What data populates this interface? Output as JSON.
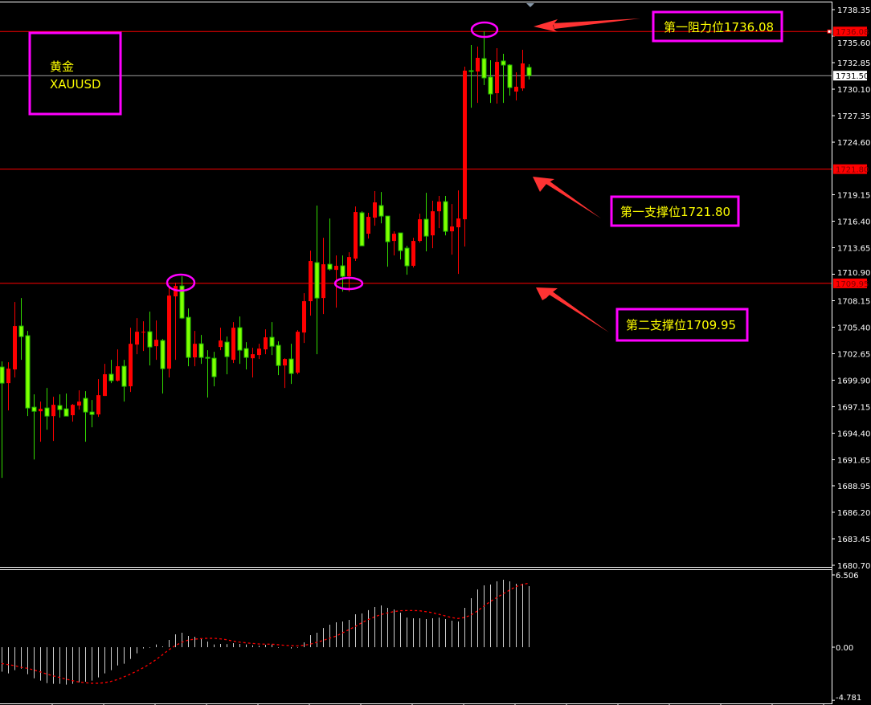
{
  "colors": {
    "background": "#000000",
    "up_candle": "#ff0000",
    "down_candle": "#7fff00",
    "level_line": "#ff0000",
    "current_price_line": "#a0a0a0",
    "annotation_box": "#ff00ff",
    "annotation_text": "#ffff00",
    "arrow": "#ff3333",
    "macd_histogram": "#d0d0d0",
    "macd_signal": "#ff0000"
  },
  "symbol_box": {
    "name_cn": "黄金",
    "symbol": "XAUUSD"
  },
  "annotations": [
    {
      "text": "第一阻力位1736.08",
      "level": 1736.08
    },
    {
      "text": "第一支撑位1721.80",
      "level": 1721.8
    },
    {
      "text": "第二支撑位1709.95",
      "level": 1709.95
    }
  ],
  "chart_data": [
    {
      "type": "candlestick",
      "title": "",
      "ylim": [
        1680.7,
        1738.35
      ],
      "y_ticks": [
        "1738.35",
        "1735.60",
        "1732.85",
        "1730.10",
        "1727.35",
        "1724.60",
        "1719.15",
        "1716.40",
        "1713.65",
        "1710.90",
        "1708.15",
        "1705.40",
        "1702.65",
        "1699.90",
        "1697.15",
        "1694.40",
        "1691.65",
        "1688.95",
        "1686.20",
        "1683.45",
        "1680.70"
      ],
      "grid": false,
      "current_price": "1731.50",
      "levels": [
        {
          "value": "1736.08",
          "label": "1736.08"
        },
        {
          "value": "1721.80",
          "label": "1721.80"
        },
        {
          "value": "1709.95",
          "label": "1709.95"
        }
      ],
      "ohlc_fields": [
        "open",
        "high",
        "low",
        "close"
      ],
      "candles": [
        [
          1701.27,
          1701.85,
          1689.77,
          1699.6
        ],
        [
          1699.6,
          1701.77,
          1696.77,
          1701.1
        ],
        [
          1701.02,
          1708.02,
          1700.18,
          1705.52
        ],
        [
          1705.52,
          1708.43,
          1702.02,
          1704.43
        ],
        [
          1704.52,
          1705.02,
          1696.18,
          1697.02
        ],
        [
          1697.1,
          1698.43,
          1691.68,
          1696.68
        ],
        [
          1696.68,
          1697.68,
          1693.52,
          1696.93
        ],
        [
          1697.02,
          1699.1,
          1694.77,
          1696.18
        ],
        [
          1696.18,
          1698.18,
          1693.6,
          1697.35
        ],
        [
          1697.27,
          1698.43,
          1696.02,
          1696.85
        ],
        [
          1696.93,
          1698.52,
          1696.18,
          1696.18
        ],
        [
          1696.27,
          1697.43,
          1695.6,
          1697.35
        ],
        [
          1697.27,
          1698.85,
          1696.85,
          1697.68
        ],
        [
          1698.02,
          1698.77,
          1693.52,
          1696.6
        ],
        [
          1696.6,
          1697.85,
          1695.02,
          1696.35
        ],
        [
          1696.35,
          1700.02,
          1696.1,
          1698.35
        ],
        [
          1698.27,
          1701.6,
          1698.27,
          1700.52
        ],
        [
          1700.52,
          1702.02,
          1699.6,
          1699.85
        ],
        [
          1699.85,
          1703.1,
          1699.77,
          1701.35
        ],
        [
          1701.35,
          1702.02,
          1697.68,
          1699.27
        ],
        [
          1699.27,
          1705.35,
          1698.68,
          1703.68
        ],
        [
          1703.6,
          1706.35,
          1702.6,
          1704.93
        ],
        [
          1704.85,
          1706.02,
          1702.93,
          1704.93
        ],
        [
          1704.93,
          1707.02,
          1701.43,
          1703.35
        ],
        [
          1703.43,
          1706.1,
          1702.02,
          1704.1
        ],
        [
          1704.02,
          1704.18,
          1698.52,
          1701.1
        ],
        [
          1701.1,
          1709.6,
          1700.18,
          1708.68
        ],
        [
          1708.6,
          1710.02,
          1702.02,
          1709.68
        ],
        [
          1709.68,
          1710.68,
          1706.27,
          1706.35
        ],
        [
          1706.43,
          1707.35,
          1701.35,
          1702.27
        ],
        [
          1702.27,
          1705.02,
          1701.35,
          1703.68
        ],
        [
          1703.68,
          1704.6,
          1701.6,
          1702.27
        ],
        [
          1702.27,
          1703.02,
          1698.1,
          1702.18
        ],
        [
          1702.18,
          1702.85,
          1699.27,
          1700.27
        ],
        [
          1703.35,
          1705.35,
          1703.02,
          1704.02
        ],
        [
          1703.85,
          1704.43,
          1700.52,
          1702.35
        ],
        [
          1702.02,
          1705.93,
          1701.68,
          1705.35
        ],
        [
          1705.35,
          1706.52,
          1701.6,
          1703.02
        ],
        [
          1703.18,
          1703.85,
          1701.02,
          1702.27
        ],
        [
          1702.18,
          1703.27,
          1700.18,
          1702.6
        ],
        [
          1702.52,
          1703.68,
          1702.1,
          1703.18
        ],
        [
          1703.1,
          1705.18,
          1702.6,
          1704.35
        ],
        [
          1704.35,
          1705.93,
          1702.52,
          1703.43
        ],
        [
          1703.52,
          1703.93,
          1700.43,
          1701.43
        ],
        [
          1701.43,
          1702.18,
          1699.1,
          1702.1
        ],
        [
          1702.1,
          1703.68,
          1699.52,
          1700.6
        ],
        [
          1700.68,
          1705.1,
          1700.52,
          1704.93
        ],
        [
          1704.85,
          1708.93,
          1703.77,
          1708.1
        ],
        [
          1708.1,
          1713.35,
          1706.6,
          1712.27
        ],
        [
          1712.1,
          1718.02,
          1702.6,
          1708.43
        ],
        [
          1708.43,
          1714.68,
          1706.77,
          1711.93
        ],
        [
          1711.93,
          1716.68,
          1711.27,
          1711.43
        ],
        [
          1711.35,
          1712.85,
          1707.43,
          1711.77
        ],
        [
          1711.77,
          1712.85,
          1709.1,
          1710.68
        ],
        [
          1710.68,
          1713.18,
          1709.1,
          1712.68
        ],
        [
          1712.52,
          1717.93,
          1712.27,
          1717.35
        ],
        [
          1717.27,
          1717.43,
          1713.85,
          1713.85
        ],
        [
          1715.1,
          1717.27,
          1714.6,
          1716.85
        ],
        [
          1716.77,
          1719.52,
          1715.93,
          1718.35
        ],
        [
          1718.02,
          1719.43,
          1716.18,
          1716.93
        ],
        [
          1716.93,
          1716.93,
          1711.68,
          1714.27
        ],
        [
          1714.35,
          1715.35,
          1712.85,
          1715.1
        ],
        [
          1715.18,
          1715.18,
          1712.43,
          1713.35
        ],
        [
          1713.6,
          1713.85,
          1710.85,
          1711.77
        ],
        [
          1711.77,
          1714.68,
          1711.6,
          1714.35
        ],
        [
          1714.35,
          1717.18,
          1714.18,
          1716.6
        ],
        [
          1716.6,
          1719.35,
          1713.27,
          1714.85
        ],
        [
          1714.93,
          1718.52,
          1713.6,
          1717.43
        ],
        [
          1717.43,
          1719.02,
          1715.68,
          1718.43
        ],
        [
          1718.43,
          1719.02,
          1714.93,
          1715.35
        ],
        [
          1715.35,
          1718.18,
          1712.93,
          1715.85
        ],
        [
          1715.77,
          1719.6,
          1710.93,
          1716.68
        ],
        [
          1716.6,
          1732.43,
          1713.77,
          1732.02
        ],
        [
          1732.02,
          1734.68,
          1728.18,
          1731.93
        ],
        [
          1731.93,
          1734.52,
          1728.68,
          1733.35
        ],
        [
          1733.27,
          1736.1,
          1730.52,
          1731.27
        ],
        [
          1731.35,
          1733.1,
          1728.68,
          1729.6
        ],
        [
          1729.68,
          1734.35,
          1728.6,
          1732.93
        ],
        [
          1733.02,
          1733.77,
          1728.68,
          1732.6
        ],
        [
          1732.6,
          1732.68,
          1729.43,
          1730.27
        ],
        [
          1729.85,
          1731.85,
          1728.93,
          1730.35
        ],
        [
          1730.18,
          1734.18,
          1729.93,
          1732.77
        ],
        [
          1732.35,
          1732.68,
          1731.1,
          1731.5
        ]
      ]
    },
    {
      "type": "bar",
      "title": "",
      "ylim": [
        -4.781,
        6.506
      ],
      "y_ticks": [
        "6.506",
        "0.00",
        "-4.781"
      ],
      "histogram": [
        -2.2,
        -2.36,
        -2.07,
        -1.93,
        -2.43,
        -2.8,
        -3.01,
        -3.23,
        -3.3,
        -3.3,
        -3.37,
        -3.3,
        -3.16,
        -3.11,
        -3.01,
        -2.72,
        -2.36,
        -2.07,
        -1.64,
        -1.49,
        -1.06,
        -0.55,
        -0.12,
        -0.05,
        0.24,
        0.07,
        0.65,
        1.16,
        1.3,
        1.01,
        0.94,
        0.72,
        0.51,
        0.24,
        0.29,
        0.27,
        0.36,
        0.29,
        0.24,
        0.17,
        0.14,
        0.22,
        0.24,
        -0.05,
        0.0,
        -0.12,
        -0.05,
        0.43,
        1.08,
        1.3,
        1.73,
        2.02,
        2.24,
        2.31,
        2.46,
        2.96,
        3.04,
        3.33,
        3.61,
        3.76,
        3.54,
        3.4,
        3.11,
        2.67,
        2.6,
        2.6,
        2.53,
        2.6,
        2.67,
        2.53,
        2.39,
        2.31,
        3.54,
        4.41,
        5.2,
        5.57,
        5.64,
        5.93,
        6.07,
        5.93,
        5.71,
        5.71,
        5.49
      ],
      "signal": [
        -1.47,
        -1.57,
        -1.66,
        -1.81,
        -1.9,
        -2.05,
        -2.22,
        -2.41,
        -2.58,
        -2.72,
        -2.87,
        -3.01,
        -3.13,
        -3.2,
        -3.25,
        -3.25,
        -3.2,
        -3.08,
        -2.92,
        -2.68,
        -2.43,
        -2.17,
        -1.86,
        -1.52,
        -1.13,
        -0.7,
        -0.24,
        0.14,
        0.43,
        0.63,
        0.72,
        0.77,
        0.8,
        0.8,
        0.75,
        0.67,
        0.55,
        0.46,
        0.39,
        0.34,
        0.29,
        0.27,
        0.27,
        0.22,
        0.17,
        0.14,
        0.12,
        0.17,
        0.27,
        0.43,
        0.6,
        0.8,
        0.99,
        1.28,
        1.57,
        1.86,
        2.19,
        2.48,
        2.72,
        2.94,
        3.08,
        3.2,
        3.28,
        3.3,
        3.3,
        3.28,
        3.2,
        3.11,
        2.96,
        2.82,
        2.67,
        2.58,
        2.67,
        2.89,
        3.25,
        3.69,
        4.1,
        4.46,
        4.8,
        5.13,
        5.45,
        5.64,
        5.76
      ]
    }
  ]
}
